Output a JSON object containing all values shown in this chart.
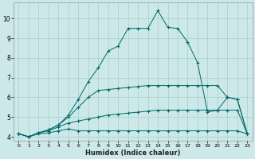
{
  "xlabel": "Humidex (Indice chaleur)",
  "background_color": "#cce8e8",
  "grid_color": "#aacece",
  "line_color": "#006868",
  "x": [
    0,
    1,
    2,
    3,
    4,
    5,
    6,
    7,
    8,
    9,
    10,
    11,
    12,
    13,
    14,
    15,
    16,
    17,
    18,
    19,
    20,
    21,
    22,
    23
  ],
  "line1": [
    4.15,
    4.0,
    4.15,
    4.2,
    4.3,
    4.4,
    4.3,
    4.3,
    4.3,
    4.3,
    4.3,
    4.3,
    4.3,
    4.3,
    4.3,
    4.3,
    4.3,
    4.3,
    4.3,
    4.3,
    4.3,
    4.3,
    4.3,
    4.15
  ],
  "line2": [
    4.15,
    4.0,
    4.2,
    4.3,
    4.5,
    4.7,
    4.8,
    4.9,
    5.0,
    5.1,
    5.15,
    5.2,
    5.25,
    5.3,
    5.35,
    5.35,
    5.35,
    5.35,
    5.35,
    5.35,
    5.35,
    5.35,
    5.35,
    4.15
  ],
  "line3": [
    4.15,
    4.0,
    4.2,
    4.35,
    4.6,
    5.0,
    5.5,
    6.0,
    6.35,
    6.4,
    6.45,
    6.5,
    6.55,
    6.6,
    6.6,
    6.6,
    6.6,
    6.6,
    6.6,
    6.6,
    6.6,
    6.0,
    5.9,
    4.15
  ],
  "line4": [
    4.15,
    4.0,
    4.2,
    4.35,
    4.6,
    5.1,
    5.9,
    6.8,
    7.5,
    8.35,
    8.6,
    9.5,
    9.5,
    9.5,
    10.4,
    9.55,
    9.5,
    8.8,
    7.75,
    5.25,
    5.35,
    6.0,
    5.9,
    4.15
  ],
  "ylim": [
    3.8,
    10.8
  ],
  "xlim": [
    -0.5,
    23.5
  ],
  "yticks": [
    4,
    5,
    6,
    7,
    8,
    9,
    10
  ],
  "xticks": [
    0,
    1,
    2,
    3,
    4,
    5,
    6,
    7,
    8,
    9,
    10,
    11,
    12,
    13,
    14,
    15,
    16,
    17,
    18,
    19,
    20,
    21,
    22,
    23
  ]
}
